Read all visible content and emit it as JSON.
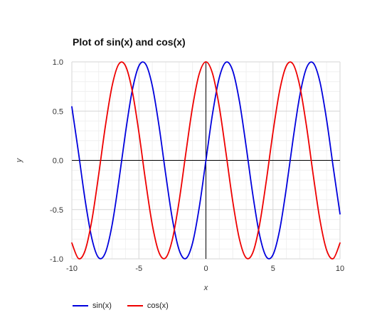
{
  "chart_data": {
    "type": "line",
    "title": "Plot of sin(x) and cos(x)",
    "xlabel": "x",
    "ylabel": "y",
    "xlim": [
      -10,
      10
    ],
    "ylim": [
      -1.0,
      1.0
    ],
    "x_ticks": [
      -10,
      -5,
      0,
      5,
      10
    ],
    "y_ticks": [
      1.0,
      0.5,
      0.0,
      -0.5,
      -1.0
    ],
    "x_tick_labels": [
      "-10",
      "-5",
      "0",
      "5",
      "10"
    ],
    "y_tick_labels": [
      "1.0",
      "0.5",
      "0.0",
      "-0.5",
      "-1.0"
    ],
    "grid": true,
    "legend_position": "bottom-left",
    "series": [
      {
        "name": "sin(x)",
        "color": "#0000dd",
        "x": [
          -10.0,
          -9.5,
          -9.0,
          -8.5,
          -8.0,
          -7.5,
          -7.0,
          -6.5,
          -6.0,
          -5.5,
          -5.0,
          -4.5,
          -4.0,
          -3.5,
          -3.0,
          -2.5,
          -2.0,
          -1.5,
          -1.0,
          -0.5,
          0.0,
          0.5,
          1.0,
          1.5,
          2.0,
          2.5,
          3.0,
          3.5,
          4.0,
          4.5,
          5.0,
          5.5,
          6.0,
          6.5,
          7.0,
          7.5,
          8.0,
          8.5,
          9.0,
          9.5,
          10.0
        ],
        "y": [
          0.544,
          0.075,
          -0.412,
          -0.798,
          -0.989,
          -0.938,
          -0.657,
          -0.215,
          0.279,
          0.706,
          0.959,
          0.978,
          0.757,
          0.351,
          -0.141,
          -0.598,
          -0.909,
          -0.997,
          -0.841,
          -0.479,
          0.0,
          0.479,
          0.841,
          0.997,
          0.909,
          0.598,
          0.141,
          -0.351,
          -0.757,
          -0.978,
          -0.959,
          -0.706,
          -0.279,
          0.215,
          0.657,
          0.938,
          0.989,
          0.798,
          0.412,
          -0.075,
          -0.544
        ]
      },
      {
        "name": "cos(x)",
        "color": "#ee0000",
        "x": [
          -10.0,
          -9.5,
          -9.0,
          -8.5,
          -8.0,
          -7.5,
          -7.0,
          -6.5,
          -6.0,
          -5.5,
          -5.0,
          -4.5,
          -4.0,
          -3.5,
          -3.0,
          -2.5,
          -2.0,
          -1.5,
          -1.0,
          -0.5,
          0.0,
          0.5,
          1.0,
          1.5,
          2.0,
          2.5,
          3.0,
          3.5,
          4.0,
          4.5,
          5.0,
          5.5,
          6.0,
          6.5,
          7.0,
          7.5,
          8.0,
          8.5,
          9.0,
          9.5,
          10.0
        ],
        "y": [
          -0.839,
          -0.997,
          -0.911,
          -0.602,
          -0.146,
          0.347,
          0.754,
          0.977,
          0.96,
          0.709,
          0.284,
          -0.211,
          -0.654,
          -0.936,
          -0.99,
          -0.801,
          -0.416,
          0.071,
          0.54,
          0.878,
          1.0,
          0.878,
          0.54,
          0.071,
          -0.416,
          -0.801,
          -0.99,
          -0.936,
          -0.654,
          -0.211,
          0.284,
          0.709,
          0.96,
          0.977,
          0.754,
          0.347,
          -0.146,
          -0.602,
          -0.911,
          -0.997,
          -0.839
        ]
      }
    ]
  }
}
